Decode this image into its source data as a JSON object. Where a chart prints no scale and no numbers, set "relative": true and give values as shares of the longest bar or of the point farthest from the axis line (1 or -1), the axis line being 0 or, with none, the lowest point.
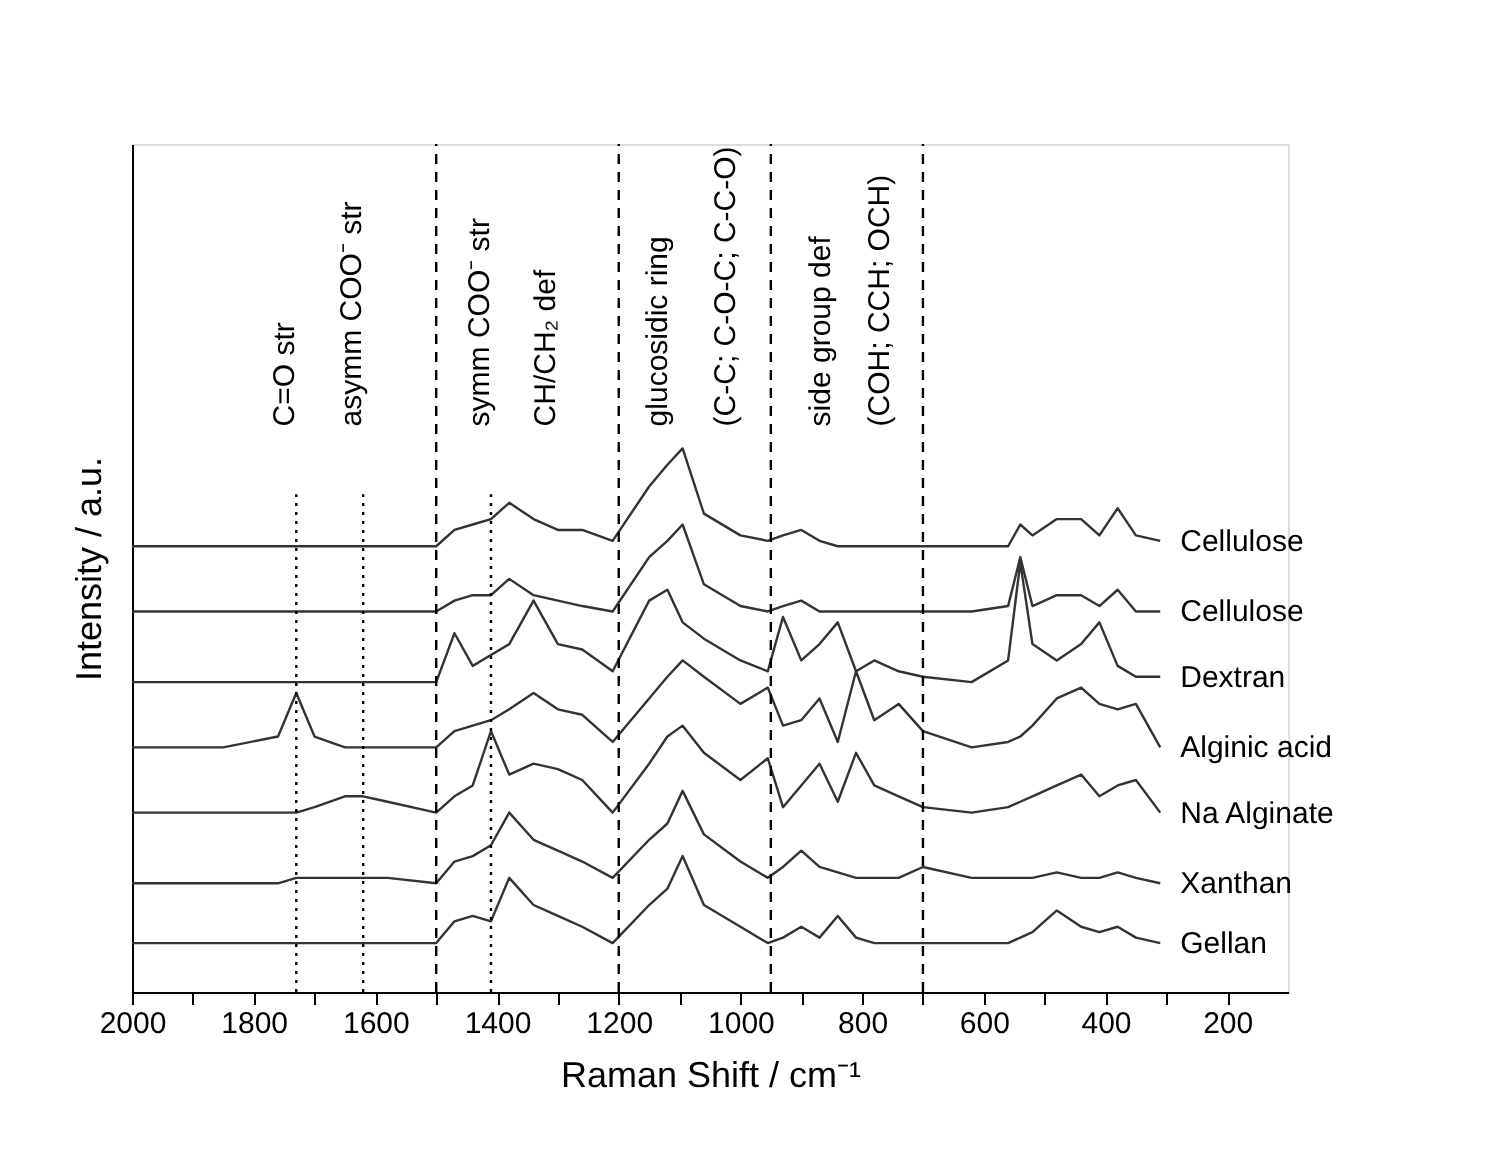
{
  "chart_data": {
    "type": "line",
    "relative": true,
    "tick_labels": "x",
    "line_style": "solid",
    "xlabel": "Raman Shift / cm⁻¹",
    "ylabel": "Intensity / a.u.",
    "xlim": [
      2000,
      100
    ],
    "xticks": [
      2000,
      {
        "value": 1900,
        "label": null
      },
      1800,
      {
        "value": 1700,
        "label": null
      },
      1600,
      {
        "value": 1500,
        "label": null
      },
      1400,
      {
        "value": 1300,
        "label": null
      },
      1200,
      {
        "value": 1100,
        "label": null
      },
      1000,
      {
        "value": 900,
        "label": null
      },
      800,
      {
        "value": 700,
        "label": null
      },
      600,
      {
        "value": 500,
        "label": null
      },
      400,
      {
        "value": 300,
        "label": null
      },
      200
    ],
    "x": [
      2000,
      1850,
      1760,
      1730,
      1700,
      1650,
      1620,
      1580,
      1500,
      1470,
      1440,
      1410,
      1380,
      1340,
      1300,
      1260,
      1210,
      1150,
      1120,
      1095,
      1060,
      1000,
      955,
      930,
      900,
      870,
      840,
      810,
      780,
      740,
      700,
      620,
      560,
      540,
      520,
      480,
      440,
      410,
      380,
      350,
      310
    ],
    "series": [
      {
        "name": "Cellulose",
        "color": "#333333",
        "values": [
          0.82,
          0.82,
          0.82,
          0.82,
          0.82,
          0.82,
          0.82,
          0.82,
          0.82,
          0.85,
          0.86,
          0.87,
          0.9,
          0.87,
          0.85,
          0.85,
          0.83,
          0.93,
          0.97,
          1.0,
          0.88,
          0.84,
          0.83,
          0.84,
          0.85,
          0.83,
          0.82,
          0.82,
          0.82,
          0.82,
          0.82,
          0.82,
          0.82,
          0.86,
          0.84,
          0.87,
          0.87,
          0.84,
          0.89,
          0.84,
          0.83
        ]
      },
      {
        "name": "Cellulose",
        "color": "#333333",
        "values": [
          0.7,
          0.7,
          0.7,
          0.7,
          0.7,
          0.7,
          0.7,
          0.7,
          0.7,
          0.72,
          0.73,
          0.73,
          0.76,
          0.73,
          0.72,
          0.71,
          0.7,
          0.8,
          0.83,
          0.86,
          0.75,
          0.71,
          0.7,
          0.71,
          0.72,
          0.7,
          0.7,
          0.7,
          0.7,
          0.7,
          0.7,
          0.7,
          0.71,
          0.8,
          0.71,
          0.73,
          0.73,
          0.71,
          0.74,
          0.7,
          0.7
        ]
      },
      {
        "name": "Dextran",
        "color": "#333333",
        "values": [
          0.57,
          0.57,
          0.57,
          0.57,
          0.57,
          0.57,
          0.57,
          0.57,
          0.57,
          0.66,
          0.6,
          0.62,
          0.64,
          0.72,
          0.64,
          0.63,
          0.59,
          0.72,
          0.74,
          0.68,
          0.65,
          0.61,
          0.59,
          0.69,
          0.61,
          0.64,
          0.68,
          0.59,
          0.61,
          0.59,
          0.58,
          0.57,
          0.61,
          0.79,
          0.64,
          0.61,
          0.64,
          0.68,
          0.6,
          0.58,
          0.58
        ]
      },
      {
        "name": "Alginic acid",
        "color": "#333333",
        "values": [
          0.45,
          0.45,
          0.47,
          0.55,
          0.47,
          0.45,
          0.45,
          0.45,
          0.45,
          0.48,
          0.49,
          0.5,
          0.52,
          0.55,
          0.52,
          0.51,
          0.46,
          0.54,
          0.58,
          0.61,
          0.58,
          0.53,
          0.56,
          0.49,
          0.5,
          0.54,
          0.46,
          0.59,
          0.5,
          0.53,
          0.48,
          0.45,
          0.46,
          0.47,
          0.49,
          0.54,
          0.56,
          0.53,
          0.52,
          0.53,
          0.45
        ]
      },
      {
        "name": "Na Alginate",
        "color": "#333333",
        "values": [
          0.33,
          0.33,
          0.33,
          0.33,
          0.34,
          0.36,
          0.36,
          0.35,
          0.33,
          0.36,
          0.38,
          0.48,
          0.4,
          0.42,
          0.41,
          0.39,
          0.33,
          0.42,
          0.47,
          0.49,
          0.44,
          0.39,
          0.43,
          0.34,
          0.38,
          0.42,
          0.35,
          0.44,
          0.38,
          0.36,
          0.34,
          0.33,
          0.34,
          0.35,
          0.36,
          0.38,
          0.4,
          0.36,
          0.38,
          0.39,
          0.33
        ]
      },
      {
        "name": "Xanthan",
        "color": "#333333",
        "values": [
          0.2,
          0.2,
          0.2,
          0.21,
          0.21,
          0.21,
          0.21,
          0.21,
          0.2,
          0.24,
          0.25,
          0.27,
          0.33,
          0.28,
          0.26,
          0.24,
          0.21,
          0.28,
          0.31,
          0.37,
          0.29,
          0.24,
          0.21,
          0.23,
          0.26,
          0.23,
          0.22,
          0.21,
          0.21,
          0.21,
          0.23,
          0.21,
          0.21,
          0.21,
          0.21,
          0.22,
          0.21,
          0.21,
          0.22,
          0.21,
          0.2
        ]
      },
      {
        "name": "Gellan",
        "color": "#333333",
        "values": [
          0.09,
          0.09,
          0.09,
          0.09,
          0.09,
          0.09,
          0.09,
          0.09,
          0.09,
          0.13,
          0.14,
          0.13,
          0.21,
          0.16,
          0.14,
          0.12,
          0.09,
          0.16,
          0.19,
          0.25,
          0.16,
          0.12,
          0.09,
          0.1,
          0.12,
          0.1,
          0.14,
          0.1,
          0.09,
          0.09,
          0.09,
          0.09,
          0.09,
          0.1,
          0.11,
          0.15,
          0.12,
          0.11,
          0.12,
          0.1,
          0.09
        ]
      }
    ],
    "ref_lines": [
      {
        "axis": "x",
        "value": 1730,
        "line_style": "dotted",
        "color": "#000000",
        "label": "C=O str"
      },
      {
        "axis": "x",
        "value": 1620,
        "line_style": "dotted",
        "color": "#000000",
        "label": "asymm COO⁻ str"
      },
      {
        "axis": "x",
        "value": 1410,
        "line_style": "dotted",
        "color": "#000000",
        "label": "symm COO⁻ str"
      },
      {
        "axis": "x",
        "value": 1500,
        "line_style": "dashed",
        "color": "#000000"
      },
      {
        "axis": "x",
        "value": 1200,
        "line_style": "dashed",
        "color": "#000000"
      },
      {
        "axis": "x",
        "value": 950,
        "line_style": "dashed",
        "color": "#000000"
      },
      {
        "axis": "x",
        "value": 700,
        "line_style": "dashed",
        "color": "#000000"
      }
    ],
    "annotations": [
      "CH/CH₂ def",
      "glucosidic ring",
      "(C-C; C-O-C; C-C-O)",
      "side group def",
      "(COH; CCH; OCH)"
    ]
  }
}
